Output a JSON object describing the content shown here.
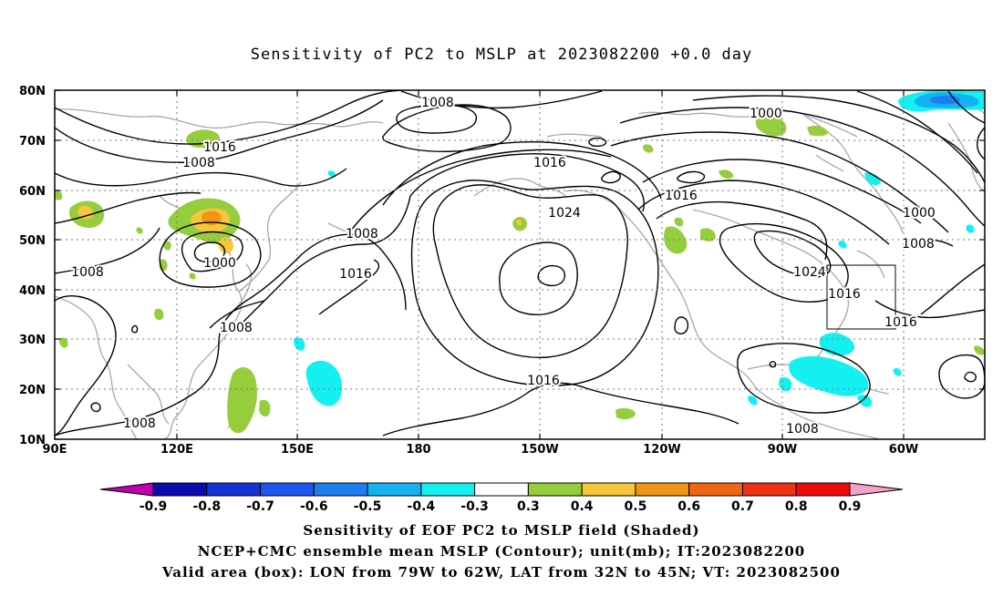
{
  "title": "Sensitivity of PC2 to MSLP at 2023082200 +0.0 day",
  "lat_labels": [
    "80N",
    "70N",
    "60N",
    "50N",
    "40N",
    "30N",
    "20N",
    "10N"
  ],
  "lon_labels": [
    "90E",
    "120E",
    "150E",
    "180",
    "150W",
    "120W",
    "90W",
    "60W"
  ],
  "contour_labels": [
    {
      "text": "1008"
    },
    {
      "text": "1000"
    },
    {
      "text": "1016"
    },
    {
      "text": "1008"
    },
    {
      "text": "1016"
    },
    {
      "text": "1008"
    },
    {
      "text": "1016"
    },
    {
      "text": "1024"
    },
    {
      "text": "1016"
    },
    {
      "text": "1000"
    },
    {
      "text": "1008"
    },
    {
      "text": "1024"
    },
    {
      "text": "1016"
    },
    {
      "text": "1016"
    },
    {
      "text": "1008"
    },
    {
      "text": "1008"
    },
    {
      "text": "1016"
    },
    {
      "text": "1008"
    },
    {
      "text": "1000"
    },
    {
      "text": "1008"
    }
  ],
  "colorbar": {
    "labels": [
      "-0.9",
      "-0.8",
      "-0.7",
      "-0.6",
      "-0.5",
      "-0.4",
      "-0.3",
      "0.3",
      "0.4",
      "0.5",
      "0.6",
      "0.7",
      "0.8",
      "0.9"
    ],
    "colors": [
      "#c000b0",
      "#0b0bae",
      "#1432d6",
      "#1e55f0",
      "#1e7ef0",
      "#14b2f0",
      "#14f0f0",
      "#ffffff",
      "#96cd3c",
      "#f5c83c",
      "#f09614",
      "#f06414",
      "#f03214",
      "#f00a0a",
      "#f5a0c8"
    ]
  },
  "footer": {
    "line1": "Sensitivity of EOF PC2 to MSLP field (Shaded)",
    "line2": "NCEP+CMC ensemble mean MSLP (Contour); unit(mb); IT:2023082200",
    "line3": "Valid area (box): LON from 79W to 62W, LAT from 32N to 45N; VT: 2023082500"
  }
}
